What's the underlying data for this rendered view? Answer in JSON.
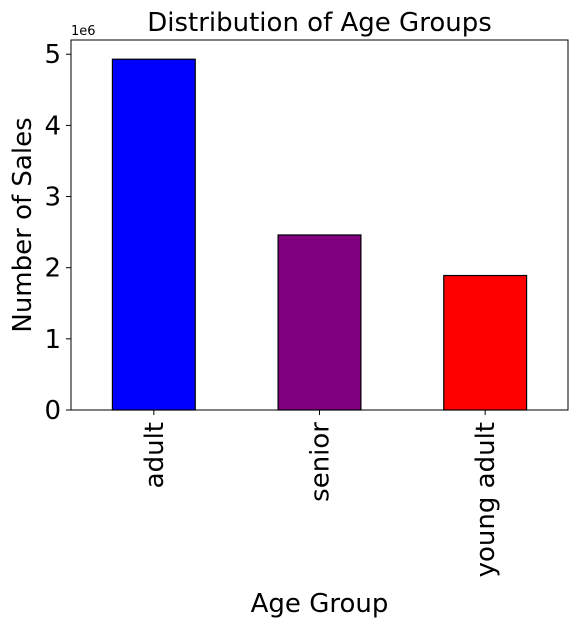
{
  "chart_data": {
    "type": "bar",
    "title": "Distribution of Age Groups",
    "xlabel": "Age Group",
    "ylabel": "Number of Sales",
    "categories": [
      "adult",
      "senior",
      "young adult"
    ],
    "values": [
      4930000,
      2460000,
      1890000
    ],
    "colors": [
      "#0000ff",
      "#800080",
      "#ff0000"
    ],
    "edge_color": "#000000",
    "ylim": [
      0,
      5200000
    ],
    "yticks": [
      0,
      1000000,
      2000000,
      3000000,
      4000000,
      5000000
    ],
    "ytick_labels": [
      "0",
      "1",
      "2",
      "3",
      "4",
      "5"
    ],
    "y_offset_label": "1e6",
    "grid": false,
    "legend": false
  }
}
